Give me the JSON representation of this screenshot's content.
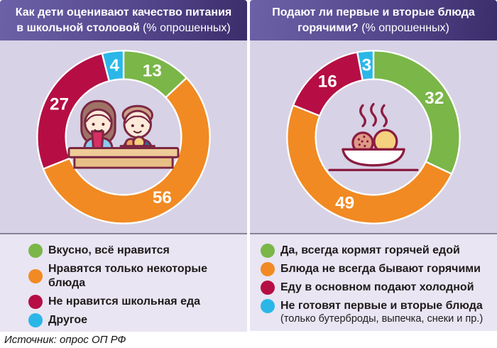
{
  "panels": [
    {
      "title_line1": "Как дети оценивают качество питания",
      "title_line2_bold": "в школьной столовой",
      "title_line2_normal": " (% опрошенных)",
      "legend": [
        {
          "label": "Вкусно, всё нравится",
          "color": "#7ab648"
        },
        {
          "label": "Нравятся только некоторые блюда",
          "color": "#f18a22"
        },
        {
          "label": "Не нравится школьная еда",
          "color": "#b60e44"
        },
        {
          "label": "Другое",
          "color": "#2ab7e8"
        }
      ]
    },
    {
      "title_line1": "Подают ли первые и вторые блюда",
      "title_line2_bold": "горячими?",
      "title_line2_normal": " (% опрошенных)",
      "legend": [
        {
          "label": "Да, всегда кормят горячей едой",
          "color": "#7ab648"
        },
        {
          "label": "Блюда не всегда бывают горячими",
          "color": "#f18a22"
        },
        {
          "label": "Еду в основном подают холодной",
          "color": "#b60e44"
        },
        {
          "label": "Не готовят первые и вторые блюда",
          "sublabel": "(только бутерброды, выпечка, снеки и пр.)",
          "color": "#2ab7e8"
        }
      ]
    }
  ],
  "chart_data": [
    {
      "type": "pie",
      "subtype": "donut",
      "title": "Как дети оценивают качество питания в школьной столовой (% опрошенных)",
      "categories": [
        "Вкусно, всё нравится",
        "Нравятся только некоторые блюда",
        "Не нравится школьная еда",
        "Другое"
      ],
      "values": [
        13,
        56,
        27,
        4
      ],
      "colors": [
        "#7ab648",
        "#f18a22",
        "#b60e44",
        "#2ab7e8"
      ],
      "unit": "%",
      "start_angle": "12-oclock",
      "direction": "clockwise",
      "legend_position": "bottom"
    },
    {
      "type": "pie",
      "subtype": "donut",
      "title": "Подают ли первые и вторые блюда горячими? (% опрошенных)",
      "categories": [
        "Да, всегда кормят горячей едой",
        "Блюда не всегда бывают горячими",
        "Еду в основном подают холодной",
        "Не готовят первые и вторые блюда (только бутерброды, выпечка, снеки и пр.)"
      ],
      "values": [
        32,
        49,
        16,
        3
      ],
      "colors": [
        "#7ab648",
        "#f18a22",
        "#b60e44",
        "#2ab7e8"
      ],
      "unit": "%",
      "start_angle": "12-oclock",
      "direction": "clockwise",
      "legend_position": "bottom"
    }
  ],
  "footer": {
    "source": "Источник: опрос ОП РФ"
  },
  "colors": {
    "green": "#7ab648",
    "orange": "#f18a22",
    "raspberry": "#b60e44",
    "cyan": "#2ab7e8",
    "header_gradient_start": "#6c61a8",
    "header_gradient_end": "#3b2d6a",
    "chart_bg": "#d7d2e6",
    "legend_bg": "#e9e5f3",
    "divider": "#8b8298"
  }
}
